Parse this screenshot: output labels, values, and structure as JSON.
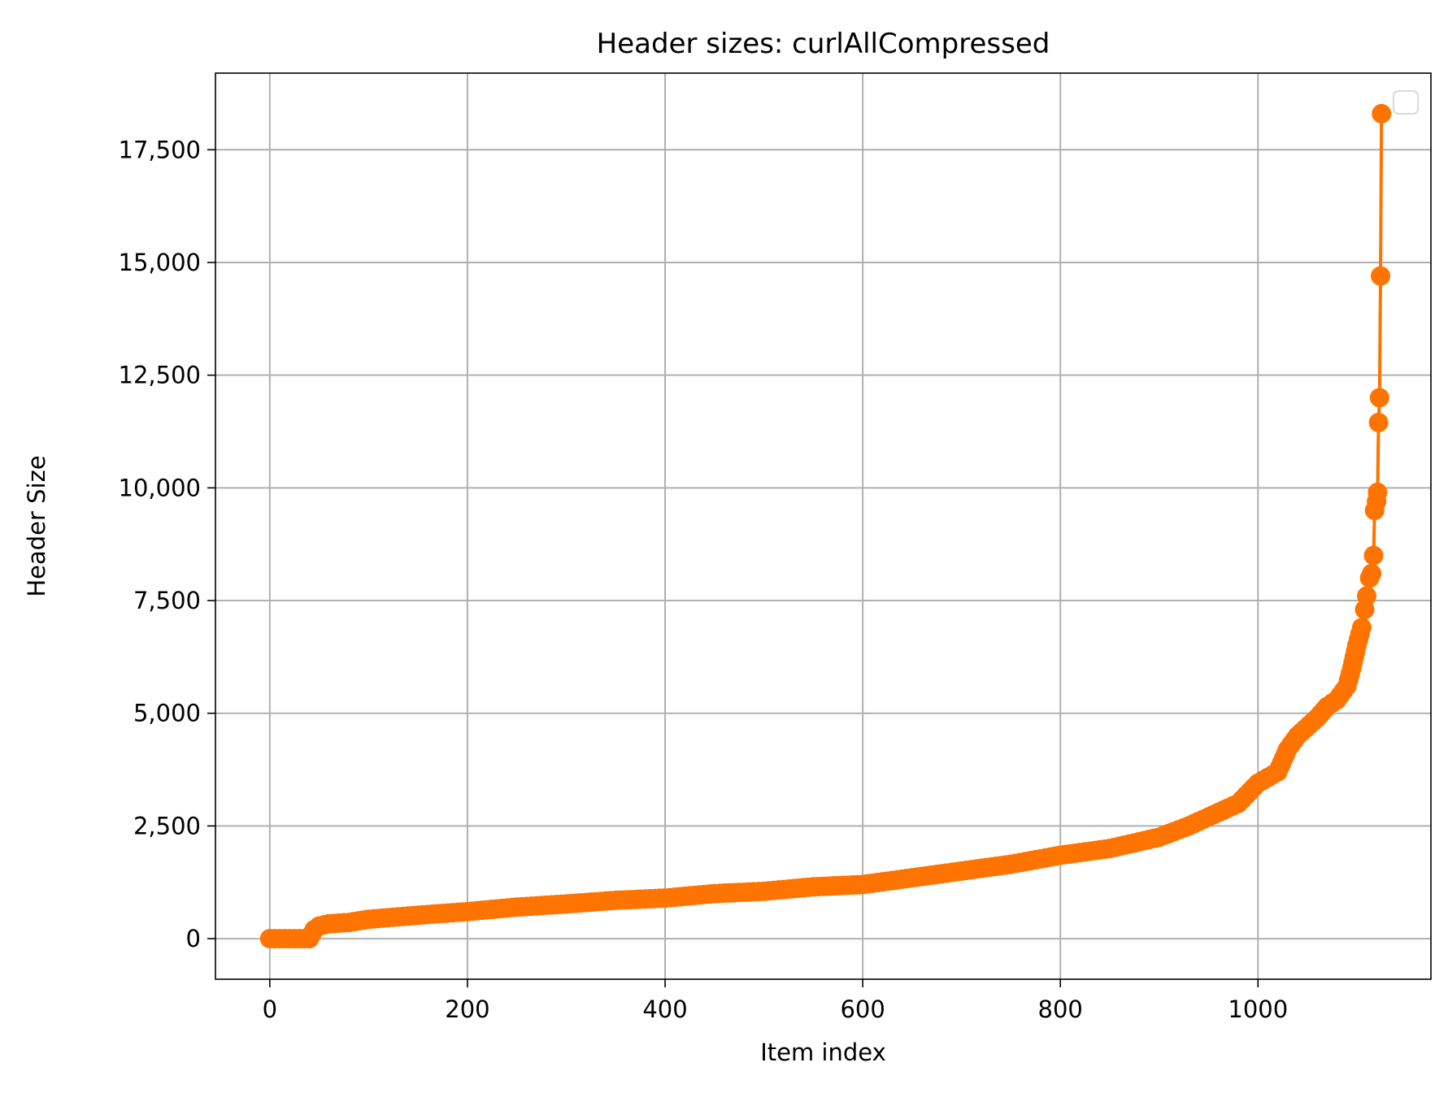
{
  "chart_data": {
    "type": "line",
    "title": "Header sizes: curlAllCompressed",
    "xlabel": "Item index",
    "ylabel": "Header Size",
    "xlim": [
      -55,
      1175
    ],
    "ylim": [
      -900,
      19200
    ],
    "xticks": [
      0,
      200,
      400,
      600,
      800,
      1000
    ],
    "xtick_labels": [
      "0",
      "200",
      "400",
      "600",
      "800",
      "1000"
    ],
    "yticks": [
      0,
      2500,
      5000,
      7500,
      10000,
      12500,
      15000,
      17500
    ],
    "ytick_labels": [
      "0",
      "2,500",
      "5,000",
      "7,500",
      "10,000",
      "12,500",
      "15,000",
      "17,500"
    ],
    "grid": true,
    "legend": "top-right (empty)",
    "series_color": "#ff7300",
    "grid_color": "#b0b0b0",
    "series": [
      {
        "x": [
          0,
          10,
          20,
          30,
          40,
          45,
          50,
          60,
          80,
          100,
          150,
          200,
          250,
          300,
          350,
          400,
          450,
          500,
          550,
          600,
          650,
          700,
          750,
          800,
          850,
          900,
          930,
          960,
          980,
          1000,
          1020,
          1030,
          1040,
          1060,
          1070,
          1080,
          1090,
          1095,
          1100,
          1105,
          1108,
          1110,
          1113,
          1115,
          1117,
          1118,
          1120,
          1121,
          1122,
          1123,
          1124,
          1125
        ],
        "y": [
          0,
          0,
          0,
          0,
          0,
          200,
          280,
          330,
          360,
          430,
          520,
          600,
          700,
          770,
          850,
          900,
          1000,
          1050,
          1150,
          1200,
          1350,
          1500,
          1650,
          1850,
          2000,
          2250,
          2500,
          2800,
          3000,
          3450,
          3700,
          4200,
          4500,
          4900,
          5150,
          5300,
          5600,
          6000,
          6500,
          6900,
          7300,
          7600,
          8000,
          8100,
          8500,
          9500,
          9700,
          9900,
          11450,
          12000,
          14700,
          18300
        ]
      }
    ]
  }
}
